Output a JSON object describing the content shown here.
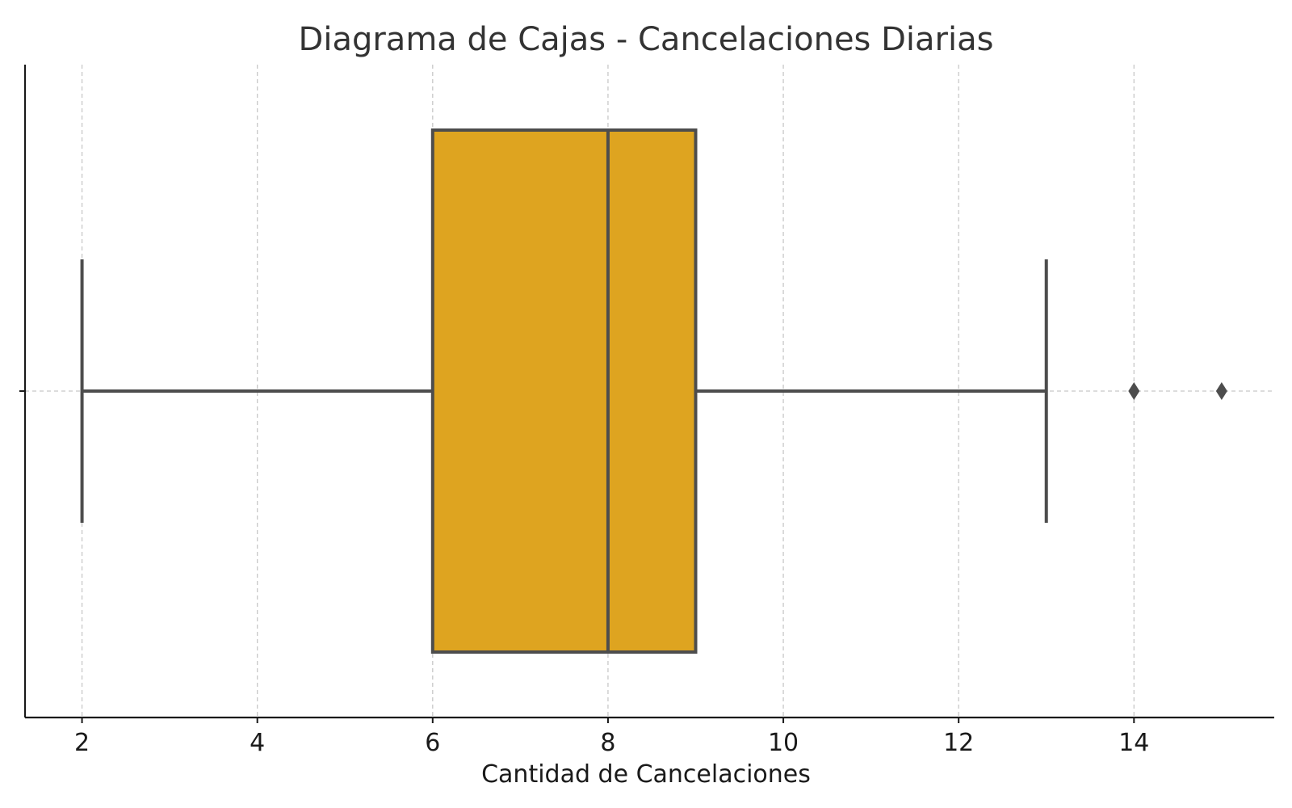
{
  "chart_data": {
    "type": "box",
    "title": "Diagrama de Cajas - Cancelaciones Diarias",
    "xlabel": "Cantidad de Cancelaciones",
    "ylabel": "",
    "orientation": "horizontal",
    "xlim": [
      1.35,
      15.6
    ],
    "xticks": [
      2,
      4,
      6,
      8,
      10,
      12,
      14
    ],
    "grid": true,
    "box": {
      "whisker_low": 2,
      "q1": 6,
      "median": 8,
      "q3": 9,
      "whisker_high": 13,
      "outliers": [
        14,
        15
      ]
    },
    "colors": {
      "box_fill": "#DEA420",
      "line": "#4d4d4d",
      "grid": "#c8c8c8",
      "axis": "#1a1a1a"
    }
  }
}
